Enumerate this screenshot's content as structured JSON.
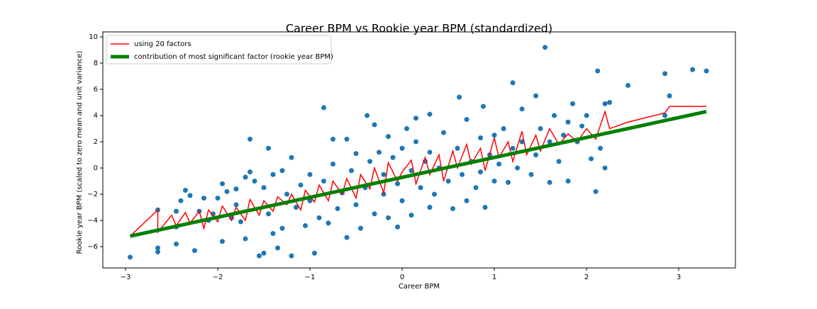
{
  "chart_data": {
    "type": "scatter",
    "title": "Career BPM vs Rookie year BPM (standardized)",
    "x_label": "Career BPM",
    "y_label": "Rookie year BPM (scaled to zero mean and unit variance)",
    "xlim": [
      -3.246,
      3.615
    ],
    "ylim": [
      -7.62,
      10.38
    ],
    "xticks": [
      {
        "value": -3,
        "label": "−3"
      },
      {
        "value": -2,
        "label": "−2"
      },
      {
        "value": -1,
        "label": "−1"
      },
      0,
      1,
      2,
      3
    ],
    "yticks": [
      {
        "value": -6,
        "label": "−6"
      },
      {
        "value": -4,
        "label": "−4"
      },
      {
        "value": -2,
        "label": "−2"
      },
      0,
      2,
      4,
      6,
      8,
      10
    ],
    "legend": "upper left",
    "points": {
      "color": "#1f77b4",
      "x": [
        -2.95,
        -2.65,
        -2.65,
        -2.65,
        -2.45,
        -2.45,
        -2.45,
        -2.4,
        -2.35,
        -2.3,
        -2.25,
        -2.2,
        -2.15,
        -2.1,
        -2.05,
        -2.0,
        -1.95,
        -1.95,
        -1.9,
        -1.85,
        -1.8,
        -1.8,
        -1.75,
        -1.7,
        -1.7,
        -1.65,
        -1.65,
        -1.6,
        -1.55,
        -1.5,
        -1.5,
        -1.45,
        -1.45,
        -1.4,
        -1.4,
        -1.35,
        -1.3,
        -1.3,
        -1.25,
        -1.2,
        -1.2,
        -1.15,
        -1.1,
        -1.05,
        -1.0,
        -1.0,
        -0.95,
        -0.9,
        -0.85,
        -0.85,
        -0.8,
        -0.75,
        -0.75,
        -0.7,
        -0.65,
        -0.6,
        -0.6,
        -0.55,
        -0.5,
        -0.5,
        -0.45,
        -0.4,
        -0.38,
        -0.35,
        -0.3,
        -0.3,
        -0.25,
        -0.2,
        -0.2,
        -0.15,
        -0.15,
        -0.1,
        -0.05,
        -0.05,
        0,
        0,
        0.05,
        0.1,
        0.1,
        0.15,
        0.2,
        0.15,
        0.25,
        0.3,
        0.3,
        0.3,
        0.35,
        0.4,
        0.45,
        0.5,
        0.55,
        0.6,
        0.62,
        0.65,
        0.7,
        0.7,
        0.75,
        0.8,
        0.85,
        0.85,
        0.88,
        0.9,
        0.95,
        1.0,
        1.0,
        1.05,
        1.1,
        1.15,
        1.2,
        1.2,
        1.25,
        1.3,
        1.3,
        1.4,
        1.45,
        1.45,
        1.5,
        1.55,
        1.6,
        1.6,
        1.65,
        1.7,
        1.75,
        1.8,
        1.8,
        1.85,
        1.9,
        1.95,
        2.0,
        2.05,
        2.1,
        2.12,
        2.15,
        2.2,
        2.25,
        2.2,
        2.45,
        2.85,
        2.85,
        2.9,
        3.15,
        3.3
      ],
      "y": [
        -6.8,
        -6.1,
        -6.4,
        -3.2,
        -5.8,
        -4.5,
        -3.3,
        -2.5,
        -1.7,
        -2.1,
        -6.3,
        -3.3,
        -2.3,
        -4.0,
        -3.5,
        -2.3,
        -5.6,
        -1.2,
        -1.8,
        -3.8,
        -2.8,
        -1.6,
        -4.1,
        -0.7,
        -5.4,
        -0.3,
        2.2,
        -1.0,
        -6.7,
        -6.5,
        -1.5,
        1.5,
        -3.5,
        -5.0,
        -0.5,
        -6.1,
        -4.6,
        -0.2,
        -2.0,
        -6.7,
        0.8,
        -3.0,
        -1.3,
        -4.4,
        -0.5,
        -2.5,
        -6.5,
        -3.8,
        -1.0,
        4.6,
        -4.2,
        2.2,
        0.3,
        -3.1,
        -1.9,
        2.2,
        -5.3,
        -0.2,
        -2.8,
        1.1,
        -4.6,
        -1.5,
        4.0,
        0.5,
        -3.5,
        3.3,
        1.2,
        -2.0,
        -0.5,
        2.4,
        -3.8,
        0.8,
        -4.5,
        -1.2,
        1.5,
        -2.5,
        3.0,
        -0.2,
        -3.6,
        2.0,
        -1.5,
        3.8,
        0.5,
        -3.0,
        1.2,
        4.1,
        -2.0,
        0.0,
        2.7,
        -1.0,
        -3.1,
        1.5,
        5.4,
        -0.5,
        3.7,
        -2.5,
        0.5,
        -1.5,
        2.3,
        -0.3,
        4.7,
        -3.0,
        1.0,
        -1.0,
        2.5,
        0.3,
        3.0,
        -1.1,
        6.5,
        1.5,
        0.0,
        4.5,
        2.0,
        -0.5,
        5.5,
        1.0,
        3.0,
        9.2,
        2.0,
        -1.1,
        4.0,
        0.5,
        2.5,
        -1.0,
        3.5,
        4.9,
        2.0,
        3.2,
        4.0,
        0.7,
        -1.8,
        7.4,
        1.5,
        4.9,
        5.0,
        0.0,
        6.3,
        7.2,
        4.0,
        5.5,
        7.5,
        7.4
      ]
    },
    "lines": [
      {
        "name": "using 20 factors",
        "color": "#ff0000",
        "x": [
          -2.95,
          -2.65,
          -2.65,
          -2.5,
          -2.45,
          -2.35,
          -2.3,
          -2.2,
          -2.15,
          -2.1,
          -2.0,
          -1.95,
          -1.85,
          -1.8,
          -1.7,
          -1.65,
          -1.55,
          -1.5,
          -1.4,
          -1.35,
          -1.25,
          -1.2,
          -1.1,
          -1.05,
          -0.95,
          -0.9,
          -0.8,
          -0.75,
          -0.65,
          -0.6,
          -0.5,
          -0.45,
          -0.35,
          -0.3,
          -0.2,
          -0.15,
          -0.05,
          0,
          0.1,
          0.15,
          0.25,
          0.3,
          0.4,
          0.45,
          0.55,
          0.6,
          0.7,
          0.75,
          0.85,
          0.9,
          1.0,
          1.05,
          1.15,
          1.2,
          1.3,
          1.35,
          1.45,
          1.5,
          1.6,
          1.7,
          1.8,
          1.9,
          2.0,
          2.1,
          2.2,
          2.25,
          2.45,
          2.85,
          2.9,
          3.3
        ],
        "y": [
          -5.2,
          -3.2,
          -4.9,
          -3.6,
          -4.4,
          -3.4,
          -4.2,
          -3.3,
          -4.6,
          -3.2,
          -4.1,
          -2.9,
          -4.0,
          -3.0,
          -4.0,
          -2.4,
          -3.6,
          -2.5,
          -3.3,
          -2.2,
          -2.8,
          -2.0,
          -3.2,
          -1.7,
          -2.6,
          -1.3,
          -2.5,
          -1.0,
          -2.0,
          -0.8,
          -2.3,
          -0.5,
          -1.6,
          0.0,
          -1.9,
          0.4,
          -1.0,
          -0.3,
          0.6,
          -1.2,
          0.8,
          -0.5,
          1.0,
          -1.0,
          1.3,
          0.0,
          1.8,
          0.3,
          1.5,
          -0.2,
          2.3,
          0.8,
          2.0,
          0.5,
          2.8,
          1.0,
          2.5,
          1.3,
          3.0,
          1.8,
          2.6,
          2.0,
          3.0,
          2.2,
          4.3,
          3.0,
          3.5,
          4.2,
          4.7,
          4.7
        ]
      },
      {
        "name": "contribution of most significant factor (rookie year BPM)",
        "color": "#008000",
        "x": [
          -2.95,
          3.3
        ],
        "y": [
          -5.2,
          4.3
        ]
      }
    ]
  }
}
